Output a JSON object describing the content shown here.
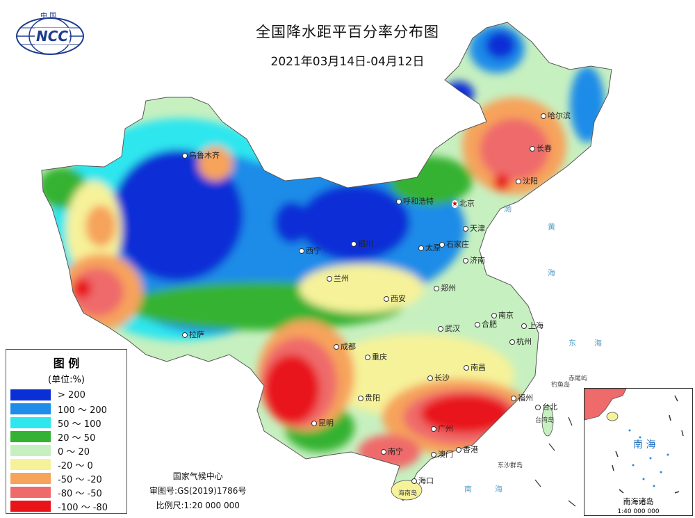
{
  "title": "全国降水距平百分率分布图",
  "subtitle": "2021年03月14日-04月12日",
  "logo": {
    "top_text": "中 国",
    "brand": "NCC"
  },
  "legend": {
    "title": "图 例",
    "unit": "(单位:%)",
    "items": [
      {
        "label": "> 200",
        "color": "#0a2fd6"
      },
      {
        "label": "100 ～ 200",
        "color": "#1e8ce8"
      },
      {
        "label": "50 ～ 100",
        "color": "#2ee6ee"
      },
      {
        "label": "20 ～ 50",
        "color": "#34b233"
      },
      {
        "label": "0 ～ 20",
        "color": "#c7f0c0"
      },
      {
        "label": "-20 ～ 0",
        "color": "#f6f29a"
      },
      {
        "label": "-50 ～ -20",
        "color": "#f6a35b"
      },
      {
        "label": "-80 ～ -50",
        "color": "#ef6a6a"
      },
      {
        "label": "-100 ～ -80",
        "color": "#e8141a"
      }
    ]
  },
  "credits": {
    "org": "国家气候中心",
    "map_no": "审图号:GS(2019)1786号",
    "scale": "比例尺:1:20 000 000"
  },
  "cities": {
    "wulumuqi": "乌鲁木齐",
    "haerbin": "哈尔滨",
    "changchun": "长春",
    "shenyang": "沈阳",
    "huhehaote": "呼和浩特",
    "beijing": "北京",
    "tianjin": "天津",
    "xining": "西宁",
    "yinchuan": "银川",
    "taiyuan": "太原",
    "shijiazhuang": "石家庄",
    "jinan": "济南",
    "lanzhou": "兰州",
    "xian": "西安",
    "zhengzhou": "郑州",
    "hefei": "合肥",
    "nanjing": "南京",
    "shanghai": "上海",
    "wuhan": "武汉",
    "hangzhou": "杭州",
    "lasa": "拉萨",
    "chengdu": "成都",
    "chongqing": "重庆",
    "nanchang": "南昌",
    "changsha": "长沙",
    "guiyang": "贵阳",
    "fuzhou": "福州",
    "taibei": "台北",
    "kunming": "昆明",
    "guangzhou": "广州",
    "nanning": "南宁",
    "xianggang": "香港",
    "aomen": "澳门",
    "haikou": "海口"
  },
  "seas": {
    "bohai": "渤",
    "huanghai_1": "黄",
    "huanghai_2": "海",
    "donghai_1": "东",
    "donghai_2": "海",
    "nanhai_1": "南",
    "nanhai_2": "海"
  },
  "islands": {
    "chiwei": "赤尾屿",
    "diaoyu": "钓鱼岛",
    "taiwan": "台湾岛",
    "dongsha": "东沙群岛",
    "hainan": "海南岛"
  },
  "inset": {
    "sea": "南 海",
    "title": "南海诸岛",
    "scale": "1:40 000 000"
  }
}
